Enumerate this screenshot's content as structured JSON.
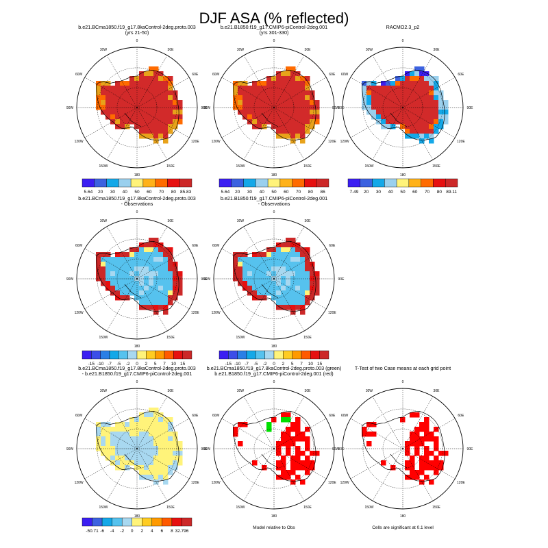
{
  "title": "DJF ASA (% reflected)",
  "lon_labels": [
    "30W",
    "0",
    "30E",
    "60E",
    "90E",
    "120E",
    "150E",
    "180",
    "150W",
    "120W",
    "90W",
    "60W"
  ],
  "chart_data": [
    {
      "type": "heatmap",
      "row": 0,
      "col": 0,
      "title": "b.e21.BCma1850.f19_g17.8kaControl-2deg.proto.003",
      "subtitle": "(yrs 21-50)",
      "pattern": "abs_model",
      "colorbar": {
        "labels": [
          "5.64",
          "20",
          "30",
          "40",
          "50",
          "60",
          "70",
          "80",
          "85.83"
        ],
        "colors": [
          "#3b1ef2",
          "#3c62e0",
          "#14a8e8",
          "#9ad0ee",
          "#fff37a",
          "#ffb21a",
          "#ff6b00",
          "#e61010",
          "#cc2828"
        ]
      }
    },
    {
      "type": "heatmap",
      "row": 0,
      "col": 1,
      "title": "b.e21.B1850.f19_g17.CMIP6-piControl-2deg.001",
      "subtitle": "(yrs 301-330)",
      "pattern": "abs_model",
      "colorbar": {
        "labels": [
          "5.64",
          "20",
          "30",
          "40",
          "50",
          "60",
          "70",
          "80",
          "86"
        ],
        "colors": [
          "#3b1ef2",
          "#3c62e0",
          "#14a8e8",
          "#9ad0ee",
          "#fff37a",
          "#ffb21a",
          "#ff6b00",
          "#e61010",
          "#cc2828"
        ]
      }
    },
    {
      "type": "heatmap",
      "row": 0,
      "col": 2,
      "title": "RACMO2.3_p2",
      "subtitle": "",
      "pattern": "abs_obs",
      "colorbar": {
        "labels": [
          "7.49",
          "20",
          "30",
          "40",
          "50",
          "60",
          "70",
          "80",
          "89.11"
        ],
        "colors": [
          "#3b1ef2",
          "#3c62e0",
          "#14a8e8",
          "#9ad0ee",
          "#fff37a",
          "#ffb21a",
          "#ff6b00",
          "#e61010",
          "#cc2828"
        ]
      }
    },
    {
      "type": "heatmap",
      "row": 1,
      "col": 0,
      "title": "b.e21.BCma1850.f19_g17.8kaControl-2deg.proto.003",
      "subtitle": "- Observations",
      "pattern": "diff_obs",
      "colorbar": {
        "labels": [
          "-15",
          "-10",
          "-7",
          "-5",
          "-2",
          "0",
          "2",
          "5",
          "7",
          "10",
          "15"
        ],
        "colors": [
          "#3b1ef2",
          "#3c4ee8",
          "#2a7fe6",
          "#14a8e8",
          "#56c2ee",
          "#a8d8f0",
          "#fff37a",
          "#ffcc22",
          "#ff9a00",
          "#ff5a00",
          "#e61010",
          "#cc2828"
        ]
      }
    },
    {
      "type": "heatmap",
      "row": 1,
      "col": 1,
      "title": "b.e21.B1850.f19_g17.CMIP6-piControl-2deg.001",
      "subtitle": "- Observations",
      "pattern": "diff_obs",
      "colorbar": {
        "labels": [
          "-15",
          "-10",
          "-7",
          "-5",
          "-2",
          "0",
          "2",
          "5",
          "7",
          "10",
          "15"
        ],
        "colors": [
          "#3b1ef2",
          "#3c4ee8",
          "#2a7fe6",
          "#14a8e8",
          "#56c2ee",
          "#a8d8f0",
          "#fff37a",
          "#ffcc22",
          "#ff9a00",
          "#ff5a00",
          "#e61010",
          "#cc2828"
        ]
      }
    },
    {
      "type": "heatmap",
      "row": 2,
      "col": 0,
      "title": "b.e21.BCma1850.f19_g17.8kaControl-2deg.proto.003",
      "subtitle": "- b.e21.B1850.f19_g17.CMIP6-piControl-2deg.001",
      "pattern": "diff_case",
      "colorbar": {
        "labels": [
          "-50.71",
          "-6",
          "-4",
          "-2",
          "0",
          "2",
          "4",
          "6",
          "8",
          "32.796"
        ],
        "colors": [
          "#3b1ef2",
          "#3c62e0",
          "#14a8e8",
          "#56c2ee",
          "#a8d8f0",
          "#fff37a",
          "#ffcc22",
          "#ff9a00",
          "#ff5a00",
          "#e61010",
          "#cc2828"
        ]
      }
    },
    {
      "type": "heatmap",
      "row": 2,
      "col": 1,
      "title": "b.e21.BCma1850.f19_g17.8kaControl-2deg.proto.003 (green)",
      "subtitle": "b.e21.B1850.f19_g17.CMIP6-piControl-2deg.001 (red)",
      "pattern": "model_vs_obs",
      "note": "Model relative to Obs"
    },
    {
      "type": "heatmap",
      "row": 2,
      "col": 2,
      "title": "T-Test of two Case means at each grid point",
      "subtitle": "",
      "pattern": "ttest",
      "note": "Cells are significant at 0.1 level"
    }
  ]
}
